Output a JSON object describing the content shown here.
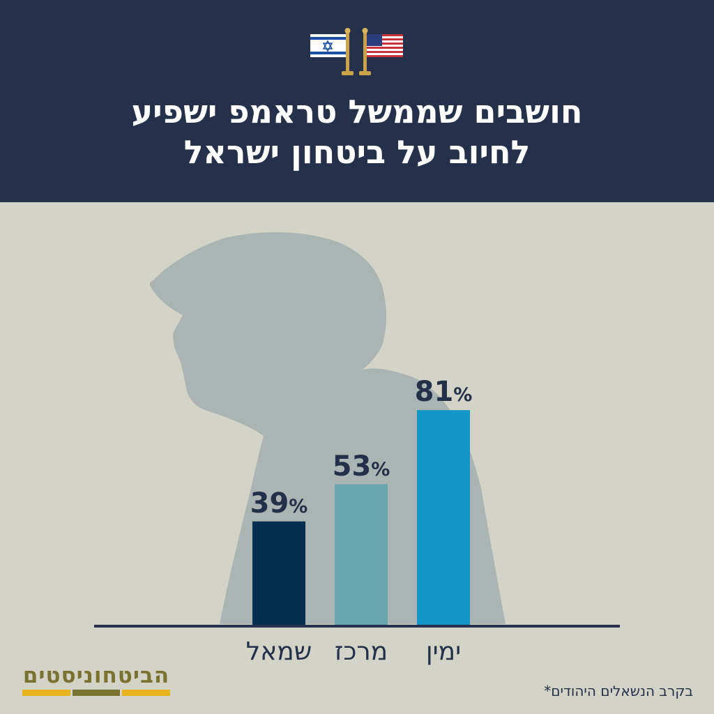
{
  "header": {
    "title_line1": "חושבים שממשל טראמפ ישפיע",
    "title_line2": "לחיוב על ביטחון ישראל",
    "background": "#25314b",
    "flag_icons": [
      "israel-flag-icon",
      "usa-flag-icon"
    ]
  },
  "chart_data": {
    "type": "bar",
    "categories": [
      "שמאל",
      "מרכז",
      "ימין"
    ],
    "values": [
      39,
      53,
      81
    ],
    "value_labels": [
      "39",
      "53",
      "81"
    ],
    "value_suffix": "%",
    "colors": [
      "#03304e",
      "#6aa6ae",
      "#1296c8"
    ],
    "title": "",
    "xlabel": "",
    "ylabel": "",
    "ylim": [
      0,
      100
    ]
  },
  "footnote": "בקרב הנשאלים היהודים*",
  "logo": {
    "text": "הביטחוניסטים",
    "colors": [
      "#e9b51c",
      "#7a7230",
      "#e9b51c"
    ]
  }
}
